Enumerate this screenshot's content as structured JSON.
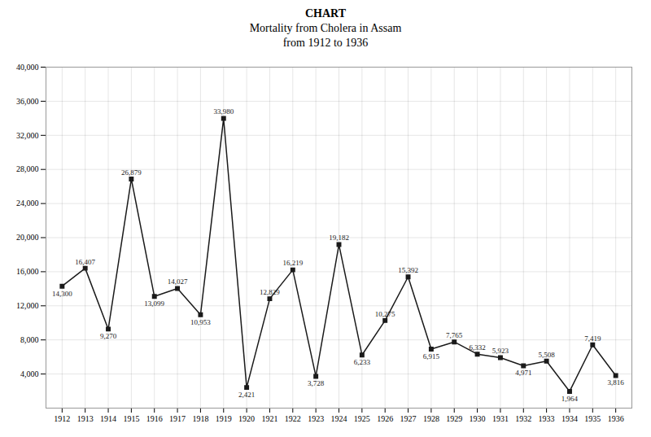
{
  "chart_data": {
    "type": "line",
    "title": "CHART",
    "subtitle": [
      "Mortality from Cholera in Assam",
      "from 1912 to 1936"
    ],
    "x": [
      1912,
      1913,
      1914,
      1915,
      1916,
      1917,
      1918,
      1919,
      1920,
      1921,
      1922,
      1923,
      1924,
      1925,
      1926,
      1927,
      1928,
      1929,
      1930,
      1931,
      1932,
      1933,
      1934,
      1935,
      1936
    ],
    "values": [
      14300,
      16407,
      9270,
      26879,
      13099,
      14027,
      10953,
      33980,
      2421,
      12829,
      16219,
      3728,
      19182,
      6233,
      10275,
      15392,
      6915,
      7765,
      6332,
      5923,
      4971,
      5508,
      1964,
      7419,
      3816
    ],
    "value_labels": [
      "14,300",
      "16,407",
      "9,270",
      "26,879",
      "13,099",
      "14,027",
      "10,953",
      "33,980",
      "2,421",
      "12,829",
      "16,219",
      "3,728",
      "19,182",
      "6,233",
      "10,275",
      "15,392",
      "6,915",
      "7,765",
      "6,332",
      "5,923",
      "4,971",
      "5,508",
      "1,964",
      "7,419",
      "3,816"
    ],
    "xlim": [
      1911.3,
      1936.7
    ],
    "xticks": [
      1912,
      1913,
      1914,
      1915,
      1916,
      1917,
      1918,
      1919,
      1920,
      1921,
      1922,
      1923,
      1924,
      1925,
      1926,
      1927,
      1928,
      1929,
      1930,
      1931,
      1932,
      1933,
      1934,
      1935,
      1936
    ],
    "ylim": [
      0,
      40000
    ],
    "yticks": [
      {
        "value": 4000,
        "label": "4,000"
      },
      {
        "value": 8000,
        "label": "8,000"
      },
      {
        "value": 12000,
        "label": "12,000"
      },
      {
        "value": 16000,
        "label": "16,000"
      },
      {
        "value": 20000,
        "label": "20,000"
      },
      {
        "value": 24000,
        "label": "24,000"
      },
      {
        "value": 28000,
        "label": "28,000"
      },
      {
        "value": 32000,
        "label": "32,000"
      },
      {
        "value": 36000,
        "label": "36,000"
      },
      {
        "value": 40000,
        "label": "40,000"
      }
    ],
    "color": "#1a1a1a",
    "marker": "square",
    "line_style": "solid",
    "grid": true,
    "data_labels": true
  }
}
